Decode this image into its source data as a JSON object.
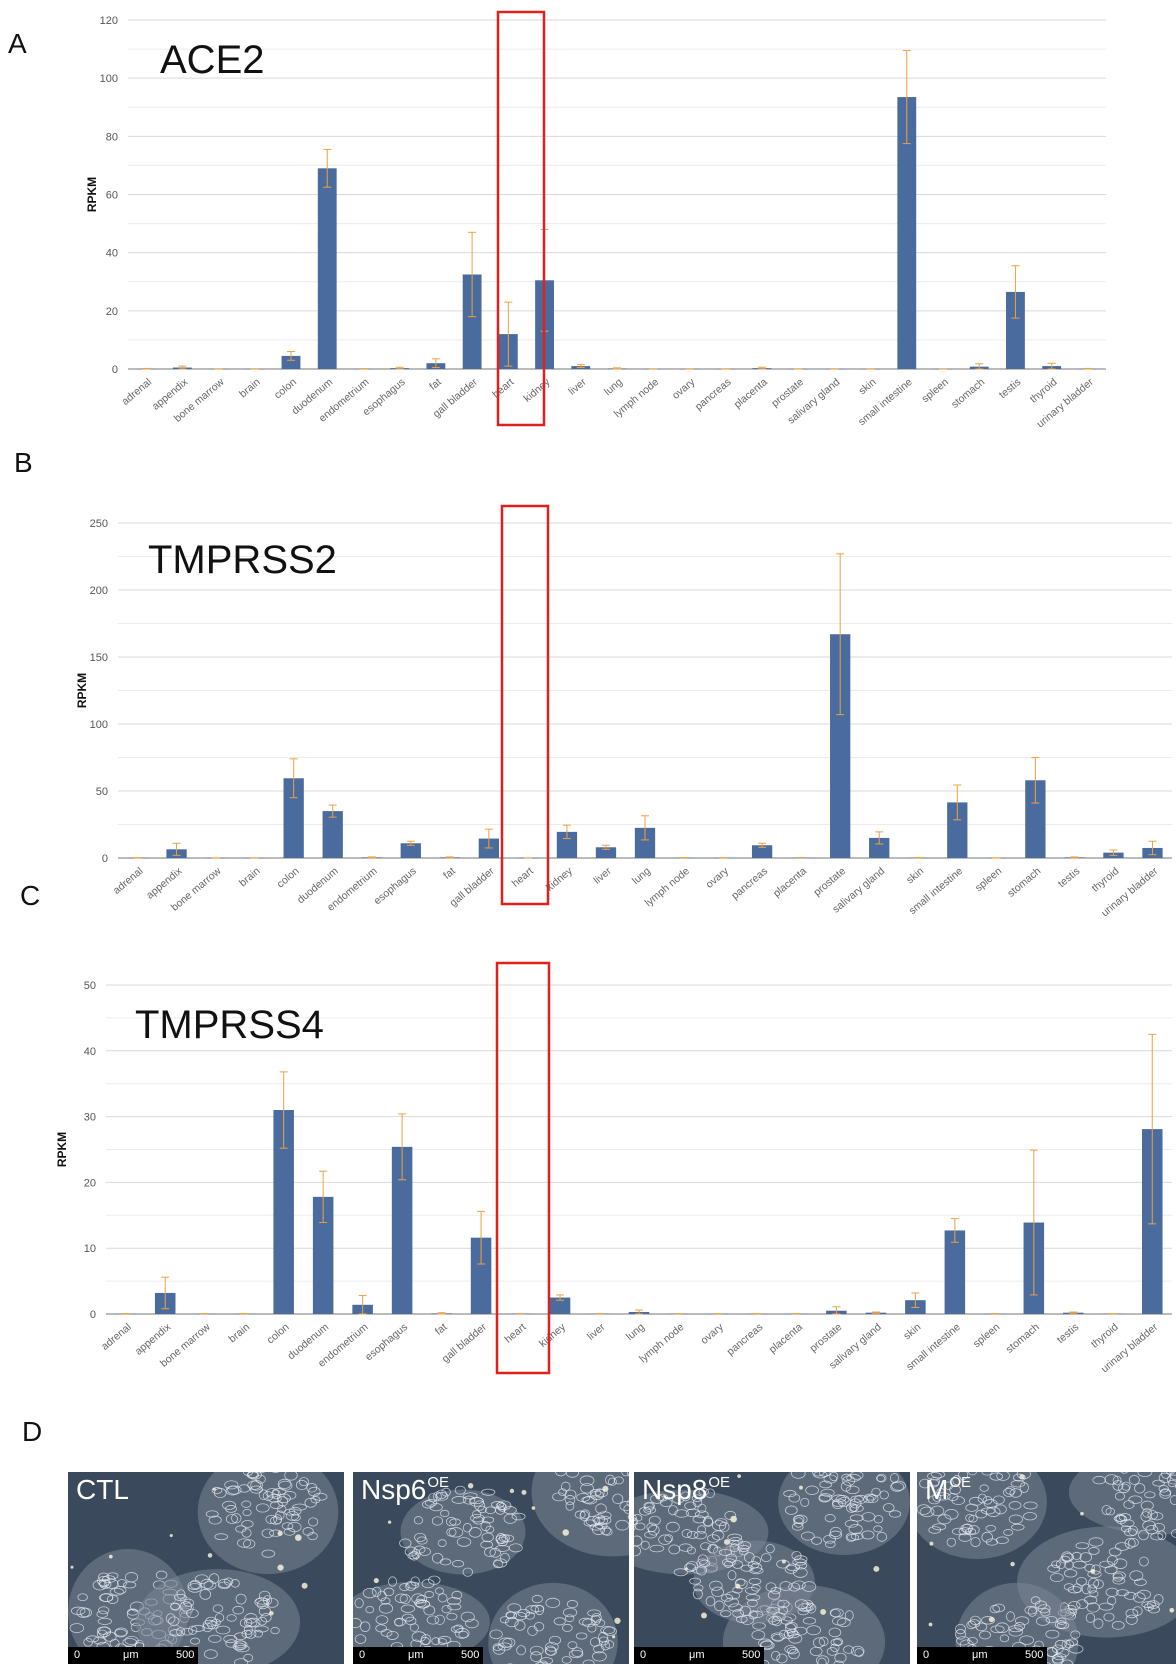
{
  "panels": [
    {
      "letter": "A"
    },
    {
      "letter": "B"
    },
    {
      "letter": "C"
    },
    {
      "letter": "D"
    }
  ],
  "colors": {
    "bar": "#4a6b9e",
    "error": "#f0a040",
    "highlight": "#e0201c",
    "grid": "#d9d9d9"
  },
  "chart_data": [
    {
      "type": "bar",
      "title": "ACE2",
      "ylabel": "RPKM",
      "xlabel": "",
      "ylim": [
        0,
        120
      ],
      "yticks": [
        0,
        20,
        40,
        60,
        80,
        100,
        120
      ],
      "grid": true,
      "highlight_category": "heart",
      "categories": [
        "adrenal",
        "appendix",
        "bone marrow",
        "brain",
        "colon",
        "duodenum",
        "endometrium",
        "esophagus",
        "fat",
        "gall bladder",
        "heart",
        "kidney",
        "liver",
        "lung",
        "lymph node",
        "ovary",
        "pancreas",
        "placenta",
        "prostate",
        "salivary gland",
        "skin",
        "small intestine",
        "spleen",
        "stomach",
        "testis",
        "thyroid",
        "urinary bladder"
      ],
      "values": [
        0.1,
        0.5,
        0.05,
        0.05,
        4.5,
        69,
        0.1,
        0.3,
        2,
        32.5,
        12,
        30.5,
        1,
        0.2,
        0.05,
        0.05,
        0.05,
        0.3,
        0.05,
        0.05,
        0.05,
        93.5,
        0.05,
        0.8,
        26.5,
        1,
        0.1
      ],
      "errors": [
        0.1,
        0.5,
        0,
        0,
        1.5,
        6.5,
        0,
        0.3,
        1.5,
        14.5,
        11,
        17.5,
        0.5,
        0.2,
        0,
        0,
        0,
        0.3,
        0,
        0,
        0,
        16,
        0,
        1,
        9,
        1,
        0.1
      ]
    },
    {
      "type": "bar",
      "title": "TMPRSS2",
      "ylabel": "RPKM",
      "xlabel": "",
      "ylim": [
        0,
        250
      ],
      "yticks": [
        0,
        50,
        100,
        150,
        200,
        250
      ],
      "grid": true,
      "highlight_category": "heart",
      "categories": [
        "adrenal",
        "appendix",
        "bone marrow",
        "brain",
        "colon",
        "duodenum",
        "endometrium",
        "esophagus",
        "fat",
        "gall bladder",
        "heart",
        "kidney",
        "liver",
        "lung",
        "lymph node",
        "ovary",
        "pancreas",
        "placenta",
        "prostate",
        "salivary gland",
        "skin",
        "small intestine",
        "spleen",
        "stomach",
        "testis",
        "thyroid",
        "urinary bladder"
      ],
      "values": [
        0.2,
        6.5,
        0.1,
        0.1,
        59.5,
        35,
        0.5,
        11,
        0.5,
        14.5,
        0.1,
        19.5,
        8,
        22.5,
        0.3,
        0.2,
        9.5,
        0.3,
        167,
        15,
        0.3,
        41.5,
        0.1,
        58,
        0.5,
        4,
        7.5
      ],
      "errors": [
        0.1,
        4.5,
        0,
        0,
        14.5,
        4.5,
        0.3,
        1.5,
        0.3,
        7,
        0,
        5,
        1.5,
        9,
        0.1,
        0,
        1.5,
        0.1,
        60,
        4.5,
        0.1,
        13,
        0,
        17,
        0.3,
        2,
        5
      ]
    },
    {
      "type": "bar",
      "title": "TMPRSS4",
      "ylabel": "RPKM",
      "xlabel": "",
      "ylim": [
        0,
        50
      ],
      "yticks": [
        0,
        10,
        20,
        30,
        40,
        50
      ],
      "grid": true,
      "highlight_category": "heart",
      "categories": [
        "adrenal",
        "appendix",
        "bone marrow",
        "brain",
        "colon",
        "duodenum",
        "endometrium",
        "esophagus",
        "fat",
        "gall bladder",
        "heart",
        "kidney",
        "liver",
        "lung",
        "lymph node",
        "ovary",
        "pancreas",
        "placenta",
        "prostate",
        "salivary gland",
        "skin",
        "small intestine",
        "spleen",
        "stomach",
        "testis",
        "thyroid",
        "urinary bladder"
      ],
      "values": [
        0.05,
        3.2,
        0.05,
        0.05,
        31,
        17.8,
        1.4,
        25.4,
        0.1,
        11.6,
        0.05,
        2.5,
        0.05,
        0.3,
        0.05,
        0.05,
        0.05,
        0.05,
        0.5,
        0.2,
        2.1,
        12.7,
        0.05,
        13.9,
        0.2,
        0.05,
        28.1
      ],
      "errors": [
        0,
        2.4,
        0,
        0,
        5.8,
        3.9,
        1.4,
        5,
        0.1,
        4,
        0,
        0.4,
        0,
        0.3,
        0,
        0,
        0,
        0,
        0.6,
        0.1,
        1.1,
        1.8,
        0,
        11,
        0.1,
        0,
        14.4
      ]
    }
  ],
  "micrographs": [
    {
      "label": "CTL",
      "sup": "",
      "scale": {
        "start": "0",
        "unit": "μm",
        "end": "500"
      }
    },
    {
      "label": "Nsp6",
      "sup": "OE",
      "scale": {
        "start": "0",
        "unit": "μm",
        "end": "500"
      }
    },
    {
      "label": "Nsp8",
      "sup": "OE",
      "scale": {
        "start": "0",
        "unit": "μm",
        "end": "500"
      }
    },
    {
      "label": "M",
      "sup": "OE",
      "scale": {
        "start": "0",
        "unit": "μm",
        "end": "500"
      }
    }
  ]
}
